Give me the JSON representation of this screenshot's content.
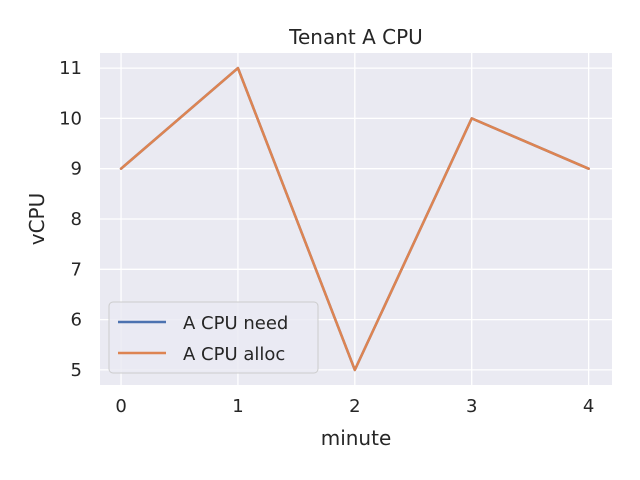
{
  "chart_data": {
    "type": "line",
    "title": "Tenant A CPU",
    "xlabel": "minute",
    "ylabel": "vCPU",
    "x": [
      0,
      1,
      2,
      3,
      4
    ],
    "xticks": [
      0,
      1,
      2,
      3,
      4
    ],
    "yticks": [
      5,
      6,
      7,
      8,
      9,
      10,
      11
    ],
    "xlim": [
      -0.18,
      4.2
    ],
    "ylim": [
      4.7,
      11.3
    ],
    "grid": true,
    "legend_position": "lower-left",
    "series": [
      {
        "name": "A CPU need",
        "values": [
          9,
          11,
          5,
          10,
          9
        ],
        "color": "#4c72b0"
      },
      {
        "name": "A CPU alloc",
        "values": [
          9,
          11,
          5,
          10,
          9
        ],
        "color": "#dd8452"
      }
    ],
    "colors": {
      "background": "#eaeaf2",
      "grid": "#ffffff",
      "text": "#262626"
    }
  }
}
